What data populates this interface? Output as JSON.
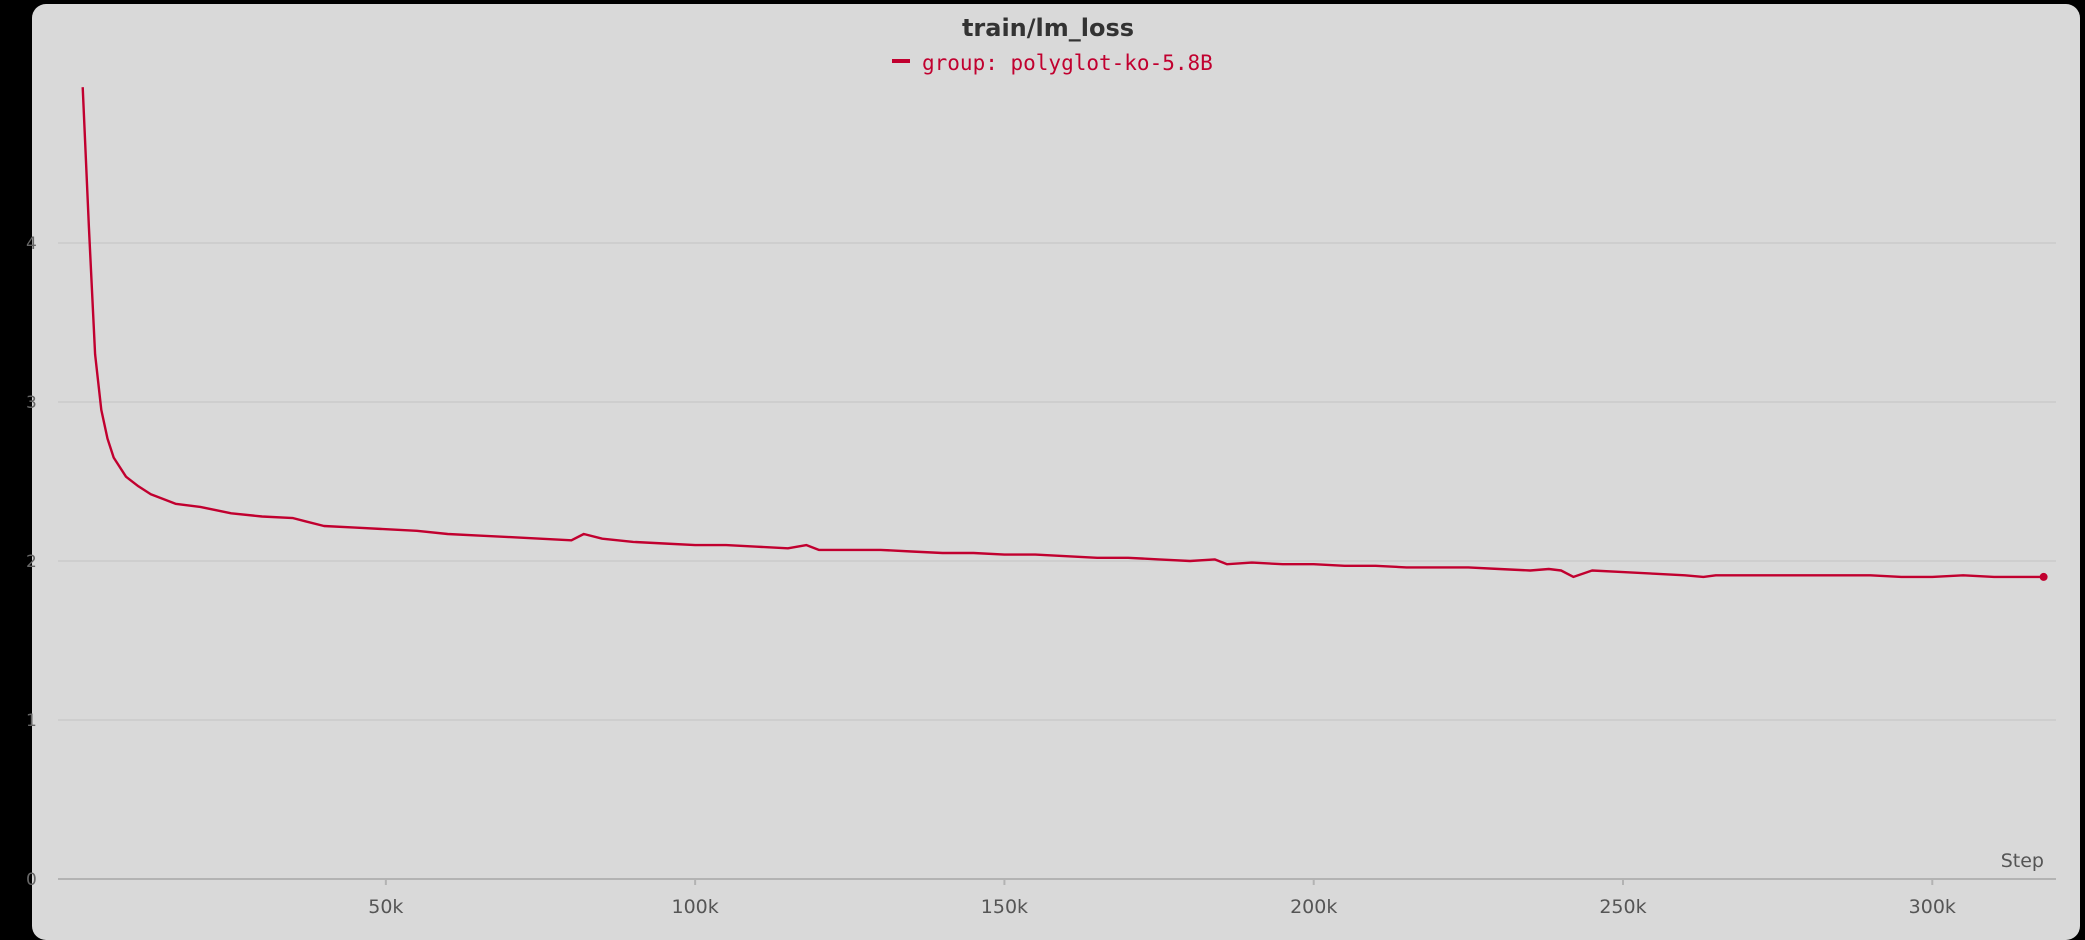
{
  "colors": {
    "series": "#c1002f",
    "grid": "#c4c4c4",
    "axis": "#b3b3b3",
    "background": "#d9d9d9"
  },
  "chart_data": {
    "type": "line",
    "title": "train/lm_loss",
    "xlabel": "Step",
    "ylabel": "",
    "xlim": [
      -3000,
      320000
    ],
    "ylim": [
      0,
      5
    ],
    "xticks": [
      50000,
      100000,
      150000,
      200000,
      250000,
      300000
    ],
    "xtick_labels": [
      "50k",
      "100k",
      "150k",
      "200k",
      "250k",
      "300k"
    ],
    "yticks": [
      0,
      1,
      2,
      3,
      4
    ],
    "ytick_labels": [
      "0",
      "1",
      "2",
      "3",
      "4"
    ],
    "grid": true,
    "legend": "top-center",
    "series": [
      {
        "name": "group: polyglot-ko-5.8B",
        "x": [
          1000,
          2000,
          3000,
          4000,
          5000,
          6000,
          8000,
          10000,
          12000,
          14000,
          16000,
          20000,
          25000,
          30000,
          35000,
          37000,
          40000,
          45000,
          50000,
          55000,
          60000,
          65000,
          70000,
          75000,
          80000,
          82000,
          85000,
          90000,
          95000,
          100000,
          105000,
          110000,
          115000,
          118000,
          120000,
          125000,
          130000,
          135000,
          140000,
          145000,
          150000,
          155000,
          160000,
          165000,
          170000,
          175000,
          180000,
          184000,
          186000,
          190000,
          195000,
          200000,
          205000,
          210000,
          215000,
          220000,
          225000,
          230000,
          235000,
          238000,
          240000,
          242000,
          245000,
          250000,
          255000,
          260000,
          263000,
          265000,
          270000,
          275000,
          280000,
          285000,
          290000,
          295000,
          300000,
          305000,
          310000,
          315000,
          318000
        ],
        "y": [
          4.98,
          4.1,
          3.3,
          2.95,
          2.77,
          2.65,
          2.53,
          2.47,
          2.42,
          2.39,
          2.36,
          2.34,
          2.3,
          2.28,
          2.27,
          2.25,
          2.22,
          2.21,
          2.2,
          2.19,
          2.17,
          2.16,
          2.15,
          2.14,
          2.13,
          2.17,
          2.14,
          2.12,
          2.11,
          2.1,
          2.1,
          2.09,
          2.08,
          2.1,
          2.07,
          2.07,
          2.07,
          2.06,
          2.05,
          2.05,
          2.04,
          2.04,
          2.03,
          2.02,
          2.02,
          2.01,
          2.0,
          2.01,
          1.98,
          1.99,
          1.98,
          1.98,
          1.97,
          1.97,
          1.96,
          1.96,
          1.96,
          1.95,
          1.94,
          1.95,
          1.94,
          1.9,
          1.94,
          1.93,
          1.92,
          1.91,
          1.9,
          1.91,
          1.91,
          1.91,
          1.91,
          1.91,
          1.91,
          1.9,
          1.9,
          1.91,
          1.9,
          1.9,
          1.9
        ]
      }
    ]
  }
}
